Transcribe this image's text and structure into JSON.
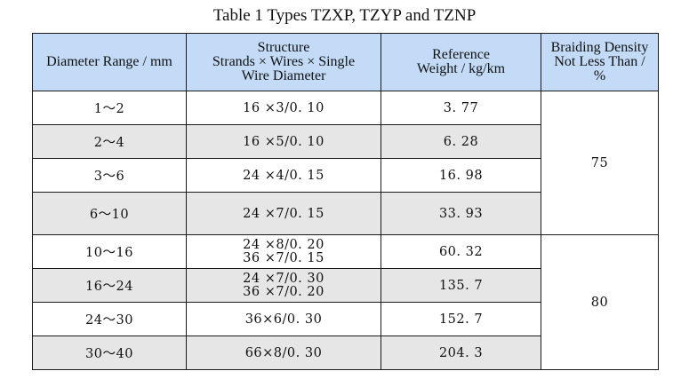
{
  "caption": "Table 1 Types TZXP, TZYP and TZNP",
  "headers": {
    "diameter": "Diameter Range / mm",
    "structure": [
      "Structure",
      "Strands × Wires × Single",
      "Wire Diameter"
    ],
    "weight": [
      "Reference",
      "Weight / kg/km"
    ],
    "density": [
      "Braiding Density",
      "Not Less Than /",
      "%"
    ]
  },
  "rows": [
    {
      "range": "1～2",
      "structure": [
        "16 ×3/0. 10"
      ],
      "weight": "3. 77"
    },
    {
      "range": "2～4",
      "structure": [
        "16 ×5/0. 10"
      ],
      "weight": "6. 28"
    },
    {
      "range": "3～6",
      "structure": [
        "24 ×4/0. 15"
      ],
      "weight": "16. 98"
    },
    {
      "range": "6～10",
      "structure": [
        "24 ×7/0. 15"
      ],
      "weight": "33. 93"
    },
    {
      "range": "10～16",
      "structure": [
        "24 ×8/0. 20",
        "36 ×7/0. 15"
      ],
      "weight": "60. 32"
    },
    {
      "range": "16～24",
      "structure": [
        "24 ×7/0. 30",
        "36 ×7/0. 20"
      ],
      "weight": "135. 7"
    },
    {
      "range": "24～30",
      "structure": [
        "36×6/0. 30"
      ],
      "weight": "152. 7"
    },
    {
      "range": "30～40",
      "structure": [
        "66×8/0. 30"
      ],
      "weight": "204. 3"
    }
  ],
  "density_groups": [
    {
      "value": "75"
    },
    {
      "value": "80"
    }
  ],
  "colors": {
    "header_fill": "#c3dbf7",
    "shaded_row": "#e6e6e6",
    "border": "#1a1a1a"
  }
}
